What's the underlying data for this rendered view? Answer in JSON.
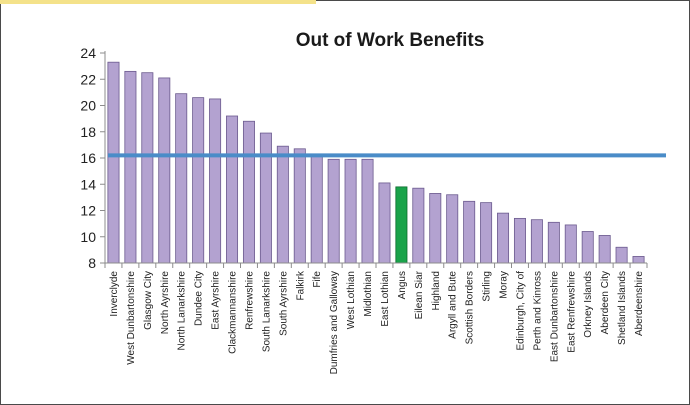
{
  "chart_data": {
    "type": "bar",
    "title": "Out of Work Benefits",
    "xlabel": "",
    "ylabel": "",
    "ylim": [
      8,
      24
    ],
    "yticks": [
      8,
      10,
      12,
      14,
      16,
      18,
      20,
      22,
      24
    ],
    "grid": false,
    "legend": "none",
    "categories": [
      "Inverclyde",
      "West Dunbartonshire",
      "Glasgow City",
      "North Ayrshire",
      "North Lanarkshire",
      "Dundee City",
      "East Ayrshire",
      "Clackmannanshire",
      "Renfrewshire",
      "South Lanarkshire",
      "South Ayrshire",
      "Falkirk",
      "Fife",
      "Dumfries and Galloway",
      "West Lothian",
      "Midlothian",
      "East Lothian",
      "Angus",
      "Eilean Siar",
      "Highland",
      "Argyll and Bute",
      "Scottish Borders",
      "Stirling",
      "Moray",
      "Edinburgh, City of",
      "Perth and Kinross",
      "East Dunbartonshire",
      "East Renfrewshire",
      "Orkney Islands",
      "Aberdeen City",
      "Shetland Islands",
      "Aberdeenshire"
    ],
    "values": [
      23.3,
      22.6,
      22.5,
      22.1,
      20.9,
      20.6,
      20.5,
      19.2,
      18.8,
      17.9,
      16.9,
      16.7,
      16.3,
      15.9,
      15.9,
      15.9,
      14.1,
      13.8,
      13.7,
      13.3,
      13.2,
      12.7,
      12.6,
      11.8,
      11.4,
      11.3,
      11.1,
      10.9,
      10.4,
      10.1,
      9.2,
      8.5
    ],
    "highlight_category": "Angus",
    "reference_line": 16.2,
    "colors": {
      "bar": "#b3a2d0",
      "bar_edge": "#6b5a8e",
      "highlight": "#1aa34a",
      "highlight_edge": "#0d6b2e",
      "reference_line": "#4a8cc8"
    }
  }
}
